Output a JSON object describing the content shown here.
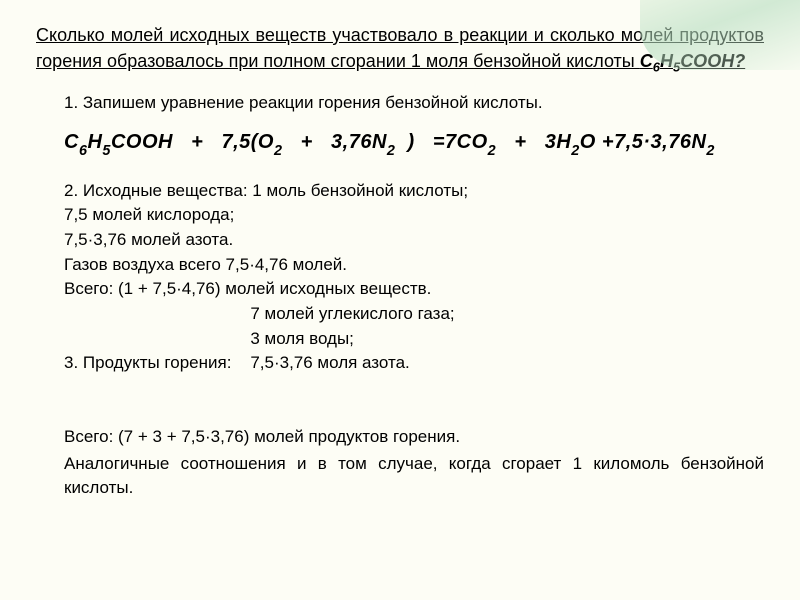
{
  "colors": {
    "background": "#fdfdf5",
    "text": "#000000",
    "accent_gradient_from": "rgba(200,230,200,0.4)",
    "accent_gradient_to": "rgba(180,220,190,0.6)"
  },
  "title": {
    "pre": "Сколько молей исходных веществ участвовало в реакции и сколько молей продуктов горения образовалось при полном сгорании 1 моля бензойной кислоты ",
    "formula_html": "C<sub>6</sub>H<sub>5</sub>COOH?",
    "fontsize": 18
  },
  "step1": {
    "text": "1. Запишем уравнение реакции горения бензойной кислоты.",
    "fontsize": 17
  },
  "equation": {
    "lhs": "C₆H₅COOH",
    "plus1": "+",
    "coef1": "7,5(O₂",
    "plus2": "+",
    "coef2": "3,76N₂",
    "close": ")",
    "eq": "=7CO₂",
    "plus3": "+",
    "rhs1": "3H₂O",
    "line2": "+7,5·3,76N₂",
    "fontsize": 20
  },
  "body": {
    "l1": "2. Исходные вещества: 1 моль бензойной кислоты;",
    "l2": "7,5 молей кислорода;",
    "l3": "7,5·3,76 молей азота.",
    "l4": "Газов воздуха всего  7,5·4,76 молей.",
    "l5": "Всего: (1 + 7,5·4,76) молей исходных веществ.",
    "l6a": "3. Продукты горения:    ",
    "l6b": "7 молей углекислого газа;",
    "l7": "3 моля воды;",
    "l8": "7,5·3,76 моля азота.",
    "l9": "Всего: (7 + 3 + 7,5·3,76) молей продуктов горения.",
    "fontsize": 17
  },
  "final": {
    "text": "Аналогичные соотношения и в том случае, когда сгорает 1 киломоль бензойной кислоты.",
    "fontsize": 17
  }
}
